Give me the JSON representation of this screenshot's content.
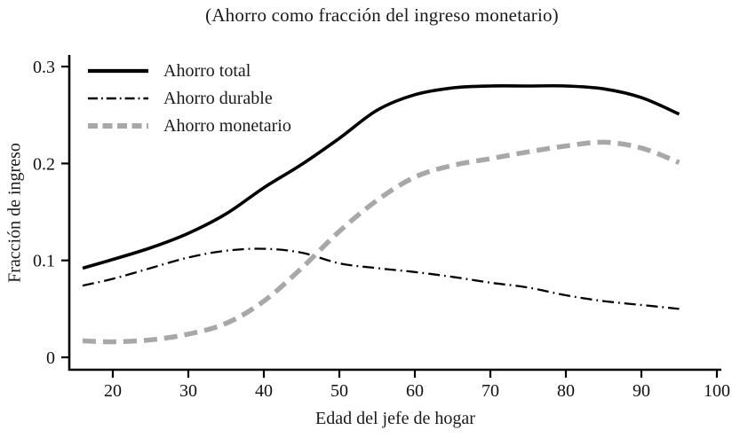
{
  "title": "(Ahorro como fracción del ingreso monetario)",
  "colors": {
    "axis": "#000000",
    "text": "#1a1a1a",
    "total_line": "#000000",
    "durable_line": "#000000",
    "monetario_line": "#a8a8a8"
  },
  "chart_data": {
    "type": "line",
    "title": "(Ahorro como fracción del ingreso monetario)",
    "xlabel": "Edad del jefe de hogar",
    "ylabel": "Fracción de ingreso",
    "x_ticks": [
      20,
      30,
      40,
      50,
      60,
      70,
      80,
      90,
      100
    ],
    "y_ticks": [
      0,
      0.1,
      0.2,
      0.3
    ],
    "y_tick_labels": [
      "0",
      "0.1",
      "0.2",
      "0.3"
    ],
    "xlim": [
      14,
      101
    ],
    "ylim": [
      0,
      0.315
    ],
    "grid": false,
    "legend_position": "top-left",
    "x": [
      16,
      20,
      25,
      30,
      35,
      40,
      45,
      50,
      55,
      60,
      65,
      70,
      75,
      80,
      85,
      90,
      95
    ],
    "series": [
      {
        "name": "Ahorro total",
        "style": "solid",
        "color": "#000000",
        "values": [
          0.092,
          0.101,
          0.113,
          0.128,
          0.148,
          0.175,
          0.199,
          0.226,
          0.255,
          0.271,
          0.278,
          0.28,
          0.28,
          0.28,
          0.277,
          0.268,
          0.251
        ]
      },
      {
        "name": "Ahorro durable",
        "style": "dashdot",
        "color": "#000000",
        "values": [
          0.074,
          0.081,
          0.092,
          0.103,
          0.11,
          0.112,
          0.108,
          0.097,
          0.092,
          0.088,
          0.083,
          0.077,
          0.072,
          0.064,
          0.058,
          0.054,
          0.05
        ]
      },
      {
        "name": "Ahorro monetario",
        "style": "dashed",
        "color": "#a8a8a8",
        "values": [
          0.017,
          0.016,
          0.018,
          0.024,
          0.035,
          0.058,
          0.092,
          0.13,
          0.162,
          0.186,
          0.198,
          0.205,
          0.212,
          0.218,
          0.222,
          0.216,
          0.201
        ]
      }
    ]
  }
}
